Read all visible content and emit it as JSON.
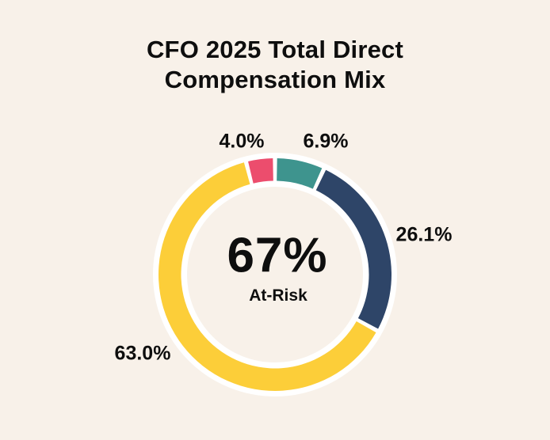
{
  "title": {
    "line1": "CFO 2025 Total Direct",
    "line2": "Compensation Mix"
  },
  "chart_data": {
    "type": "pie",
    "subtype": "donut",
    "title": "CFO 2025 Total Direct Compensation Mix",
    "start_angle_deg": -14.4,
    "direction": "clockwise",
    "background_color": "#f8f1e9",
    "ring_outline_color": "#ffffff",
    "segments": [
      {
        "name": "pink",
        "label": "4.0%",
        "value": 4.0,
        "color": "#ec4d6d"
      },
      {
        "name": "teal",
        "label": "6.9%",
        "value": 6.9,
        "color": "#3e948e"
      },
      {
        "name": "navy",
        "label": "26.1%",
        "value": 26.1,
        "color": "#2e4568"
      },
      {
        "name": "yellow",
        "label": "63.0%",
        "value": 63.0,
        "color": "#fcce39"
      }
    ],
    "center_label": {
      "value": "67%",
      "label": "At-Risk"
    }
  }
}
